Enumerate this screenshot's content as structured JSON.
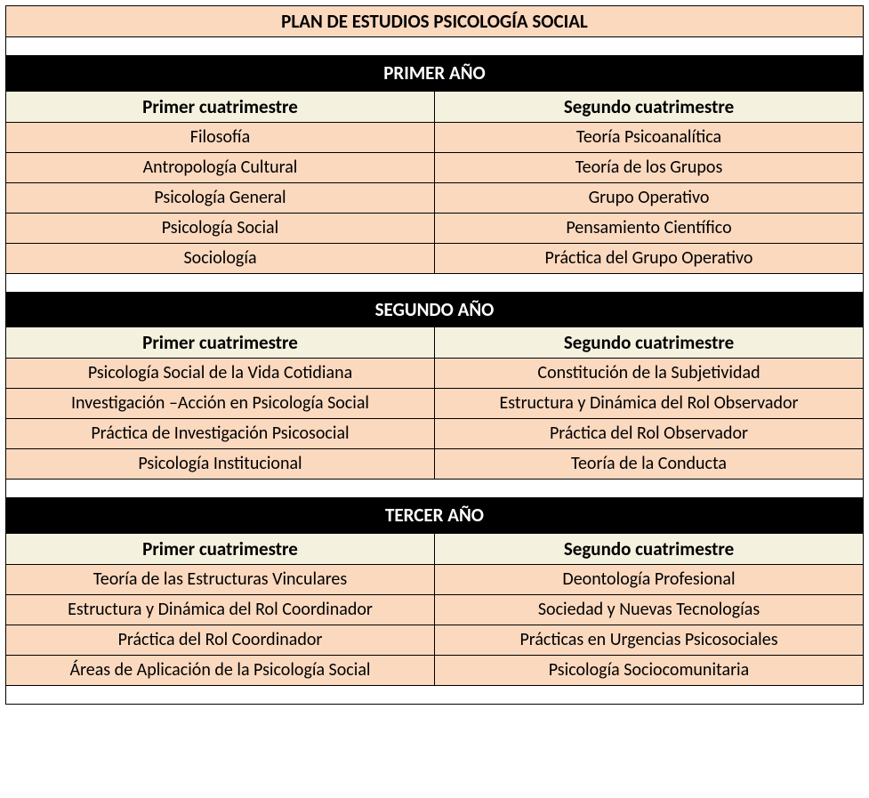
{
  "colors": {
    "peach": "#fbd9bf",
    "cream": "#f4f1df",
    "black": "#000000",
    "white": "#ffffff",
    "border": "#000000"
  },
  "fontsize": {
    "body": 20,
    "header": 21
  },
  "title": "PLAN DE ESTUDIOS PSICOLOGÍA SOCIAL",
  "columns": [
    "Primer cuatrimestre",
    "Segundo cuatrimestre"
  ],
  "years": [
    {
      "name": "PRIMER AÑO",
      "rows": [
        [
          "Filosofía",
          "Teoría Psicoanalítica"
        ],
        [
          "Antropología Cultural",
          "Teoría de los Grupos"
        ],
        [
          "Psicología General",
          "Grupo Operativo"
        ],
        [
          "Psicología Social",
          "Pensamiento Científico"
        ],
        [
          "Sociología",
          "Práctica del Grupo Operativo"
        ]
      ]
    },
    {
      "name": "SEGUNDO AÑO",
      "rows": [
        [
          "Psicología Social de la Vida Cotidiana",
          "Constitución de la Subjetividad"
        ],
        [
          "Investigación –Acción en Psicología Social",
          "Estructura y Dinámica del Rol Observador"
        ],
        [
          "Práctica de Investigación Psicosocial",
          "Práctica del Rol Observador"
        ],
        [
          "Psicología Institucional",
          "Teoría de la Conducta"
        ]
      ]
    },
    {
      "name": "TERCER AÑO",
      "rows": [
        [
          "Teoría de las Estructuras Vinculares",
          "Deontología Profesional"
        ],
        [
          "Estructura y Dinámica del Rol Coordinador",
          "Sociedad y Nuevas Tecnologías"
        ],
        [
          "Práctica del Rol Coordinador",
          "Prácticas en Urgencias Psicosociales"
        ],
        [
          "Áreas de Aplicación de la Psicología Social",
          "Psicología Sociocomunitaria"
        ]
      ]
    }
  ]
}
